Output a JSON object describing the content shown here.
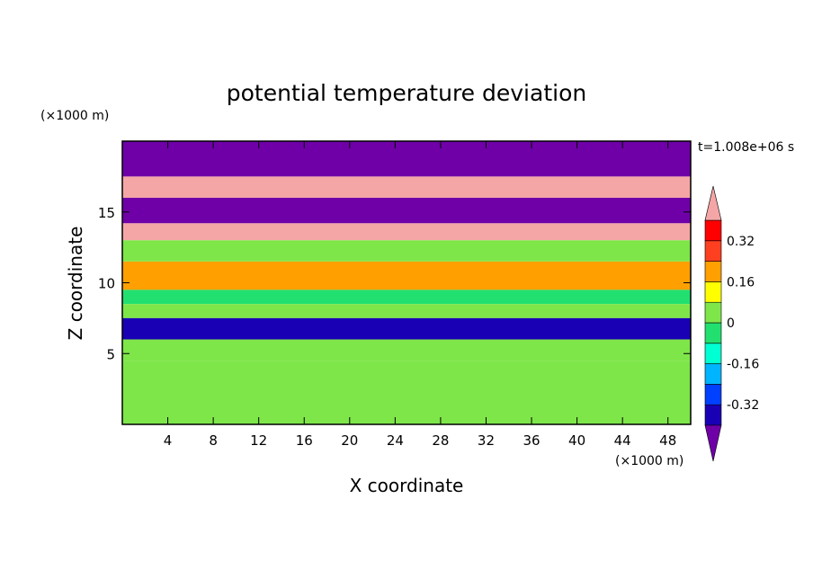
{
  "chart_data": {
    "type": "heatmap",
    "title": "potential temperature deviation",
    "xlabel": "X coordinate",
    "ylabel": "Z coordinate",
    "x_unit": "(×1000 m)",
    "y_unit": "(×1000 m)",
    "time_label": "t=1.008e+06 s",
    "xlim": [
      0,
      50
    ],
    "ylim": [
      0,
      20
    ],
    "x_ticks": [
      4,
      8,
      12,
      16,
      20,
      24,
      28,
      32,
      36,
      40,
      44,
      48
    ],
    "y_ticks": [
      5,
      10,
      15
    ],
    "colorbar": {
      "tick_labels": [
        "0.32",
        "0.16",
        "0",
        "-0.16",
        "-0.32"
      ],
      "tick_values": [
        0.32,
        0.16,
        0,
        -0.16,
        -0.32
      ],
      "levels": [
        -0.4,
        -0.32,
        -0.24,
        -0.16,
        -0.08,
        0,
        0.08,
        0.16,
        0.24,
        0.32,
        0.4
      ],
      "colors": [
        "#6f00a8",
        "#1a00b4",
        "#0040ff",
        "#00b4ff",
        "#00ffd2",
        "#22e070",
        "#7fe64a",
        "#ffff00",
        "#ffa000",
        "#ff4020",
        "#ff0000",
        "#f4a6a6"
      ],
      "extend": "both"
    },
    "description_bands": [
      {
        "zmin": 17.5,
        "zmax": 20.0,
        "value": -0.45
      },
      {
        "zmin": 16.0,
        "zmax": 17.5,
        "value": 0.45
      },
      {
        "zmin": 14.2,
        "zmax": 16.0,
        "value": -0.45
      },
      {
        "zmin": 13.0,
        "zmax": 14.2,
        "value": 0.45
      },
      {
        "zmin": 11.5,
        "zmax": 13.0,
        "value": 0.05
      },
      {
        "zmin": 9.5,
        "zmax": 11.5,
        "value": 0.18
      },
      {
        "zmin": 8.5,
        "zmax": 9.5,
        "value": -0.05
      },
      {
        "zmin": 7.5,
        "zmax": 8.5,
        "value": 0.02
      },
      {
        "zmin": 6.0,
        "zmax": 7.5,
        "value": -0.36
      },
      {
        "zmin": 4.5,
        "zmax": 6.0,
        "value": 0.0
      },
      {
        "zmin": 0.0,
        "zmax": 4.5,
        "value": 0.05
      }
    ]
  }
}
